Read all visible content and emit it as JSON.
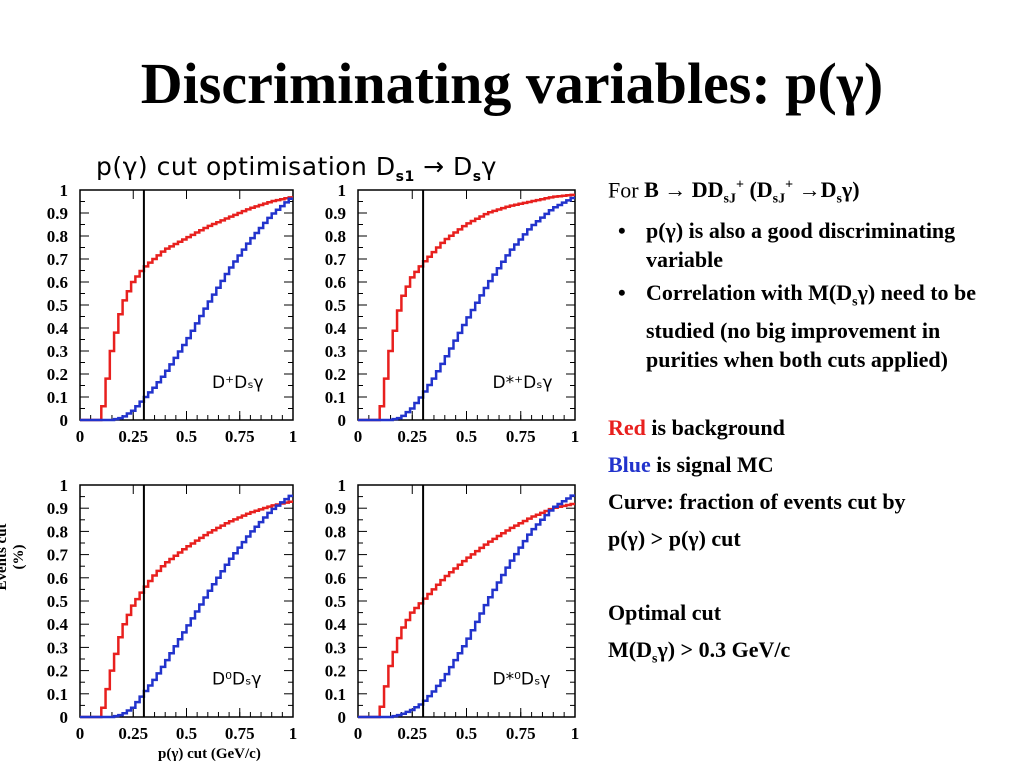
{
  "slide": {
    "title": "Discriminating variables: p(γ)"
  },
  "figure": {
    "title_main": "p(γ) cut optimisation D",
    "title_sub": "s1",
    "title_tail": " → D",
    "title_sub2": "s",
    "title_end": "γ",
    "y_axis_label": "Events cut (%)",
    "x_axis_label": "p(γ) cut (GeV/c)"
  },
  "text": {
    "intro_prefix": "For ",
    "intro_formula": "B → DD",
    "intro_sub1": "sJ",
    "intro_sup1": "+",
    "intro_mid": "  (D",
    "intro_sub2": "sJ",
    "intro_sup2": "+",
    "intro_end": " →D",
    "intro_sub3": "s",
    "intro_close": "γ)",
    "bullet1": "p(γ) is also a good discriminating variable",
    "bullet2_a": "Correlation with M(D",
    "bullet2_sub": "s",
    "bullet2_b": "γ) need to be studied (no big improvement in purities when both cuts applied)",
    "legend_red_word": "Red",
    "legend_red_rest": " is background",
    "legend_blue_word": "Blue",
    "legend_blue_rest": " is signal MC",
    "curve_line1": "Curve: fraction of events cut by",
    "curve_line2": "p(γ) > p(γ) cut",
    "optimal_title": "Optimal cut",
    "optimal_a": "M(D",
    "optimal_sub": "s",
    "optimal_b": "γ) > 0.3 GeV/c"
  },
  "colors": {
    "background": "#e8201e",
    "signal": "#2233cc",
    "cut_line": "#000000"
  },
  "chart_data": [
    {
      "type": "line",
      "label": "D⁺Dₛγ",
      "xlim": [
        0,
        1
      ],
      "ylim": [
        0,
        1
      ],
      "x_ticks": [
        "0",
        "0.25",
        "0.5",
        "0.75",
        "1"
      ],
      "y_ticks": [
        "0",
        "0.1",
        "0.2",
        "0.3",
        "0.4",
        "0.5",
        "0.6",
        "0.7",
        "0.8",
        "0.9",
        "1"
      ],
      "cut_x": 0.3,
      "series": [
        {
          "role": "background",
          "x": [
            0,
            0.1,
            0.15,
            0.2,
            0.25,
            0.3,
            0.35,
            0.4,
            0.5,
            0.6,
            0.7,
            0.8,
            0.9,
            1.0
          ],
          "y": [
            0,
            0,
            0.3,
            0.5,
            0.6,
            0.66,
            0.7,
            0.74,
            0.79,
            0.84,
            0.88,
            0.92,
            0.95,
            0.97
          ]
        },
        {
          "role": "signal",
          "x": [
            0,
            0.15,
            0.2,
            0.25,
            0.3,
            0.35,
            0.4,
            0.5,
            0.6,
            0.7,
            0.8,
            0.9,
            1.0
          ],
          "y": [
            0,
            0,
            0.01,
            0.04,
            0.09,
            0.14,
            0.2,
            0.34,
            0.5,
            0.65,
            0.78,
            0.89,
            0.97
          ]
        }
      ]
    },
    {
      "type": "line",
      "label": "D*⁺Dₛγ",
      "xlim": [
        0,
        1
      ],
      "ylim": [
        0,
        1
      ],
      "x_ticks": [
        "0",
        "0.25",
        "0.5",
        "0.75",
        "1"
      ],
      "y_ticks": [
        "0",
        "0.1",
        "0.2",
        "0.3",
        "0.4",
        "0.5",
        "0.6",
        "0.7",
        "0.8",
        "0.9",
        "1"
      ],
      "cut_x": 0.3,
      "series": [
        {
          "role": "background",
          "x": [
            0,
            0.1,
            0.15,
            0.2,
            0.25,
            0.3,
            0.35,
            0.4,
            0.5,
            0.6,
            0.7,
            0.8,
            0.9,
            1.0
          ],
          "y": [
            0,
            0,
            0.3,
            0.52,
            0.62,
            0.68,
            0.73,
            0.78,
            0.85,
            0.9,
            0.93,
            0.95,
            0.97,
            0.98
          ]
        },
        {
          "role": "signal",
          "x": [
            0,
            0.15,
            0.2,
            0.25,
            0.3,
            0.35,
            0.4,
            0.5,
            0.6,
            0.7,
            0.8,
            0.9,
            1.0
          ],
          "y": [
            0,
            0,
            0.01,
            0.05,
            0.11,
            0.18,
            0.26,
            0.43,
            0.59,
            0.73,
            0.84,
            0.92,
            0.97
          ]
        }
      ]
    },
    {
      "type": "line",
      "label": "D⁰Dₛγ",
      "xlim": [
        0,
        1
      ],
      "ylim": [
        0,
        1
      ],
      "x_ticks": [
        "0",
        "0.25",
        "0.5",
        "0.75",
        "1"
      ],
      "y_ticks": [
        "0",
        "0.1",
        "0.2",
        "0.3",
        "0.4",
        "0.5",
        "0.6",
        "0.7",
        "0.8",
        "0.9",
        "1"
      ],
      "cut_x": 0.3,
      "series": [
        {
          "role": "background",
          "x": [
            0,
            0.1,
            0.15,
            0.2,
            0.25,
            0.3,
            0.35,
            0.4,
            0.5,
            0.6,
            0.7,
            0.8,
            0.9,
            1.0
          ],
          "y": [
            0,
            0,
            0.2,
            0.38,
            0.48,
            0.55,
            0.61,
            0.66,
            0.73,
            0.79,
            0.84,
            0.88,
            0.91,
            0.93
          ]
        },
        {
          "role": "signal",
          "x": [
            0,
            0.15,
            0.2,
            0.25,
            0.3,
            0.35,
            0.4,
            0.5,
            0.6,
            0.7,
            0.8,
            0.9,
            1.0
          ],
          "y": [
            0,
            0,
            0.01,
            0.04,
            0.1,
            0.16,
            0.23,
            0.38,
            0.53,
            0.67,
            0.79,
            0.89,
            0.96
          ]
        }
      ]
    },
    {
      "type": "line",
      "label": "D*⁰Dₛγ",
      "xlim": [
        0,
        1
      ],
      "ylim": [
        0,
        1
      ],
      "x_ticks": [
        "0",
        "0.25",
        "0.5",
        "0.75",
        "1"
      ],
      "y_ticks": [
        "0",
        "0.1",
        "0.2",
        "0.3",
        "0.4",
        "0.5",
        "0.6",
        "0.7",
        "0.8",
        "0.9",
        "1"
      ],
      "cut_x": 0.3,
      "series": [
        {
          "role": "background",
          "x": [
            0,
            0.1,
            0.15,
            0.2,
            0.25,
            0.3,
            0.35,
            0.4,
            0.5,
            0.6,
            0.7,
            0.8,
            0.9,
            1.0
          ],
          "y": [
            0,
            0,
            0.22,
            0.37,
            0.45,
            0.5,
            0.55,
            0.6,
            0.68,
            0.75,
            0.81,
            0.86,
            0.9,
            0.92
          ]
        },
        {
          "role": "signal",
          "x": [
            0,
            0.15,
            0.2,
            0.25,
            0.3,
            0.35,
            0.4,
            0.5,
            0.6,
            0.7,
            0.8,
            0.9,
            1.0
          ],
          "y": [
            0,
            0,
            0.01,
            0.03,
            0.06,
            0.11,
            0.17,
            0.32,
            0.5,
            0.66,
            0.8,
            0.9,
            0.96
          ]
        }
      ]
    }
  ]
}
